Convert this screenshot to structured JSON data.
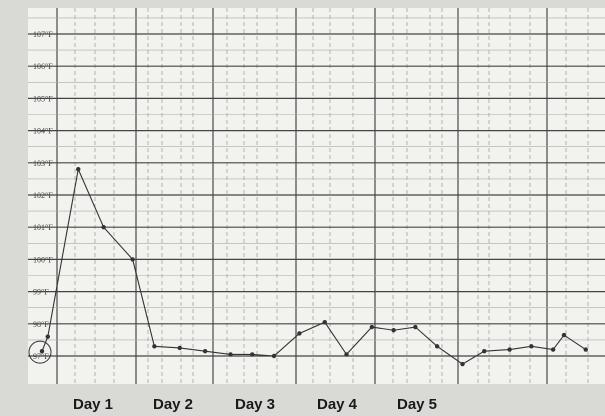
{
  "chart_data": {
    "type": "line",
    "title": "",
    "xlabel": "",
    "ylabel": "",
    "ylim": [
      96.9,
      107.2
    ],
    "y_tick_labels": [
      "107°F",
      "106°F",
      "105°F",
      "104°F",
      "103°F",
      "102°F",
      "101°F",
      "100°F",
      "99°F",
      "98°F",
      "97°F"
    ],
    "y_tick_values": [
      107,
      106,
      105,
      104,
      103,
      102,
      101,
      100,
      99,
      98,
      97
    ],
    "x_labels": [
      "Day 1",
      "Day 2",
      "Day 3",
      "Day 4",
      "Day 5"
    ],
    "grid": true,
    "series": [
      {
        "name": "",
        "x": [
          0,
          0.08,
          0.5,
          0.85,
          1.25,
          1.55,
          1.9,
          2.25,
          2.6,
          2.9,
          3.2,
          3.55,
          3.9,
          4.2,
          4.55,
          4.85,
          5.15,
          5.45,
          5.8,
          6.1,
          6.45,
          6.75,
          7.05,
          7.2,
          7.5
        ],
        "y": [
          97.15,
          97.6,
          102.8,
          101.0,
          100.0,
          97.3,
          97.25,
          97.15,
          97.05,
          97.05,
          97.0,
          97.7,
          98.05,
          97.05,
          97.9,
          97.8,
          97.9,
          97.3,
          96.75,
          97.15,
          97.2,
          97.3,
          97.2,
          97.65,
          97.2
        ],
        "circled_index": 0
      }
    ],
    "color": "#333333"
  }
}
